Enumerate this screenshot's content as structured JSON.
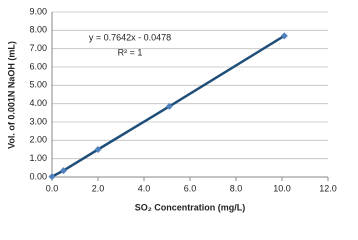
{
  "chart_data": {
    "type": "scatter",
    "xlabel": "SO₂ Concentration (mg/L)",
    "ylabel": "Vol. of 0.001N NaOH (mL)",
    "annotations": [
      "y = 0.7642x - 0.0478",
      "R² = 1"
    ],
    "series": [
      {
        "name": "Vol. of 0.001N NaOH (mL)",
        "color": "#4f81bd",
        "line_color": "#1f4e79",
        "x": [
          0,
          0.5,
          2.0,
          5.1,
          10.1
        ],
        "values": [
          0.02,
          0.35,
          1.5,
          3.85,
          7.7
        ]
      }
    ],
    "xlim": [
      0,
      12
    ],
    "ylim": [
      0,
      9
    ],
    "xticks": [
      {
        "value": 0,
        "label": "0.0"
      },
      {
        "value": 2,
        "label": "2.0"
      },
      {
        "value": 4,
        "label": "4.0"
      },
      {
        "value": 6,
        "label": "6.0"
      },
      {
        "value": 8,
        "label": "8.0"
      },
      {
        "value": 10,
        "label": "10.0"
      },
      {
        "value": 12,
        "label": "12.0"
      }
    ],
    "yticks": [
      {
        "value": 0,
        "label": "0.00"
      },
      {
        "value": 1,
        "label": "1.00"
      },
      {
        "value": 2,
        "label": "2.00"
      },
      {
        "value": 3,
        "label": "3.00"
      },
      {
        "value": 4,
        "label": "4.00"
      },
      {
        "value": 5,
        "label": "5.00"
      },
      {
        "value": 6,
        "label": "6.00"
      },
      {
        "value": 7,
        "label": "7.00"
      },
      {
        "value": 8,
        "label": "8.00"
      },
      {
        "value": 9,
        "label": "9.00"
      }
    ],
    "grid": true
  }
}
